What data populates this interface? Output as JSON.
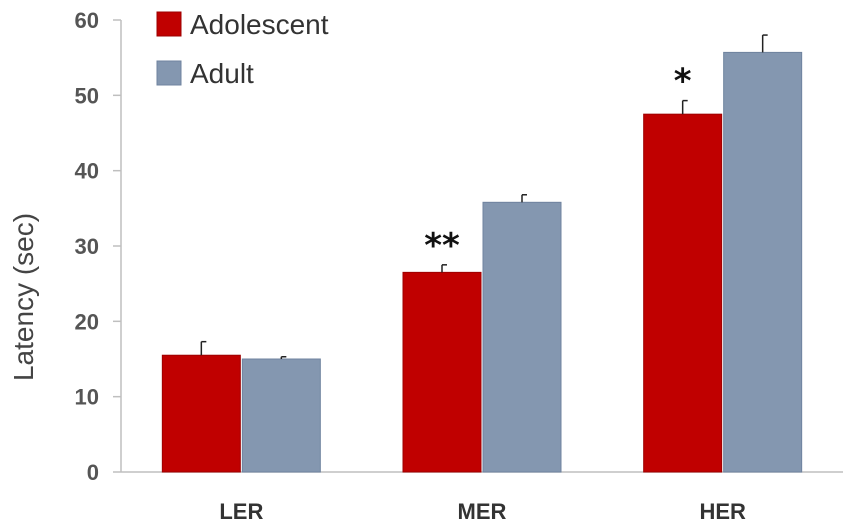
{
  "chart_data": {
    "type": "bar",
    "title": "",
    "xlabel": "",
    "ylabel": "Latency (sec)",
    "ylim": [
      0,
      60
    ],
    "yticks": [
      0,
      10,
      20,
      30,
      40,
      50,
      60
    ],
    "categories": [
      "LER",
      "MER",
      "HER"
    ],
    "series": [
      {
        "name": "Adolescent",
        "color": "#c00000",
        "values": [
          15.5,
          26.5,
          47.5
        ],
        "errors": [
          1.8,
          1.0,
          1.8
        ]
      },
      {
        "name": "Adult",
        "color": "#8497b0",
        "values": [
          15.0,
          35.8,
          55.7
        ],
        "errors": [
          0.3,
          1.0,
          2.3
        ]
      }
    ],
    "annotations": [
      {
        "category": "MER",
        "series": "Adolescent",
        "text": "**"
      },
      {
        "category": "HER",
        "series": "Adolescent",
        "text": "*"
      }
    ],
    "legend": "top-left",
    "grid": false
  }
}
